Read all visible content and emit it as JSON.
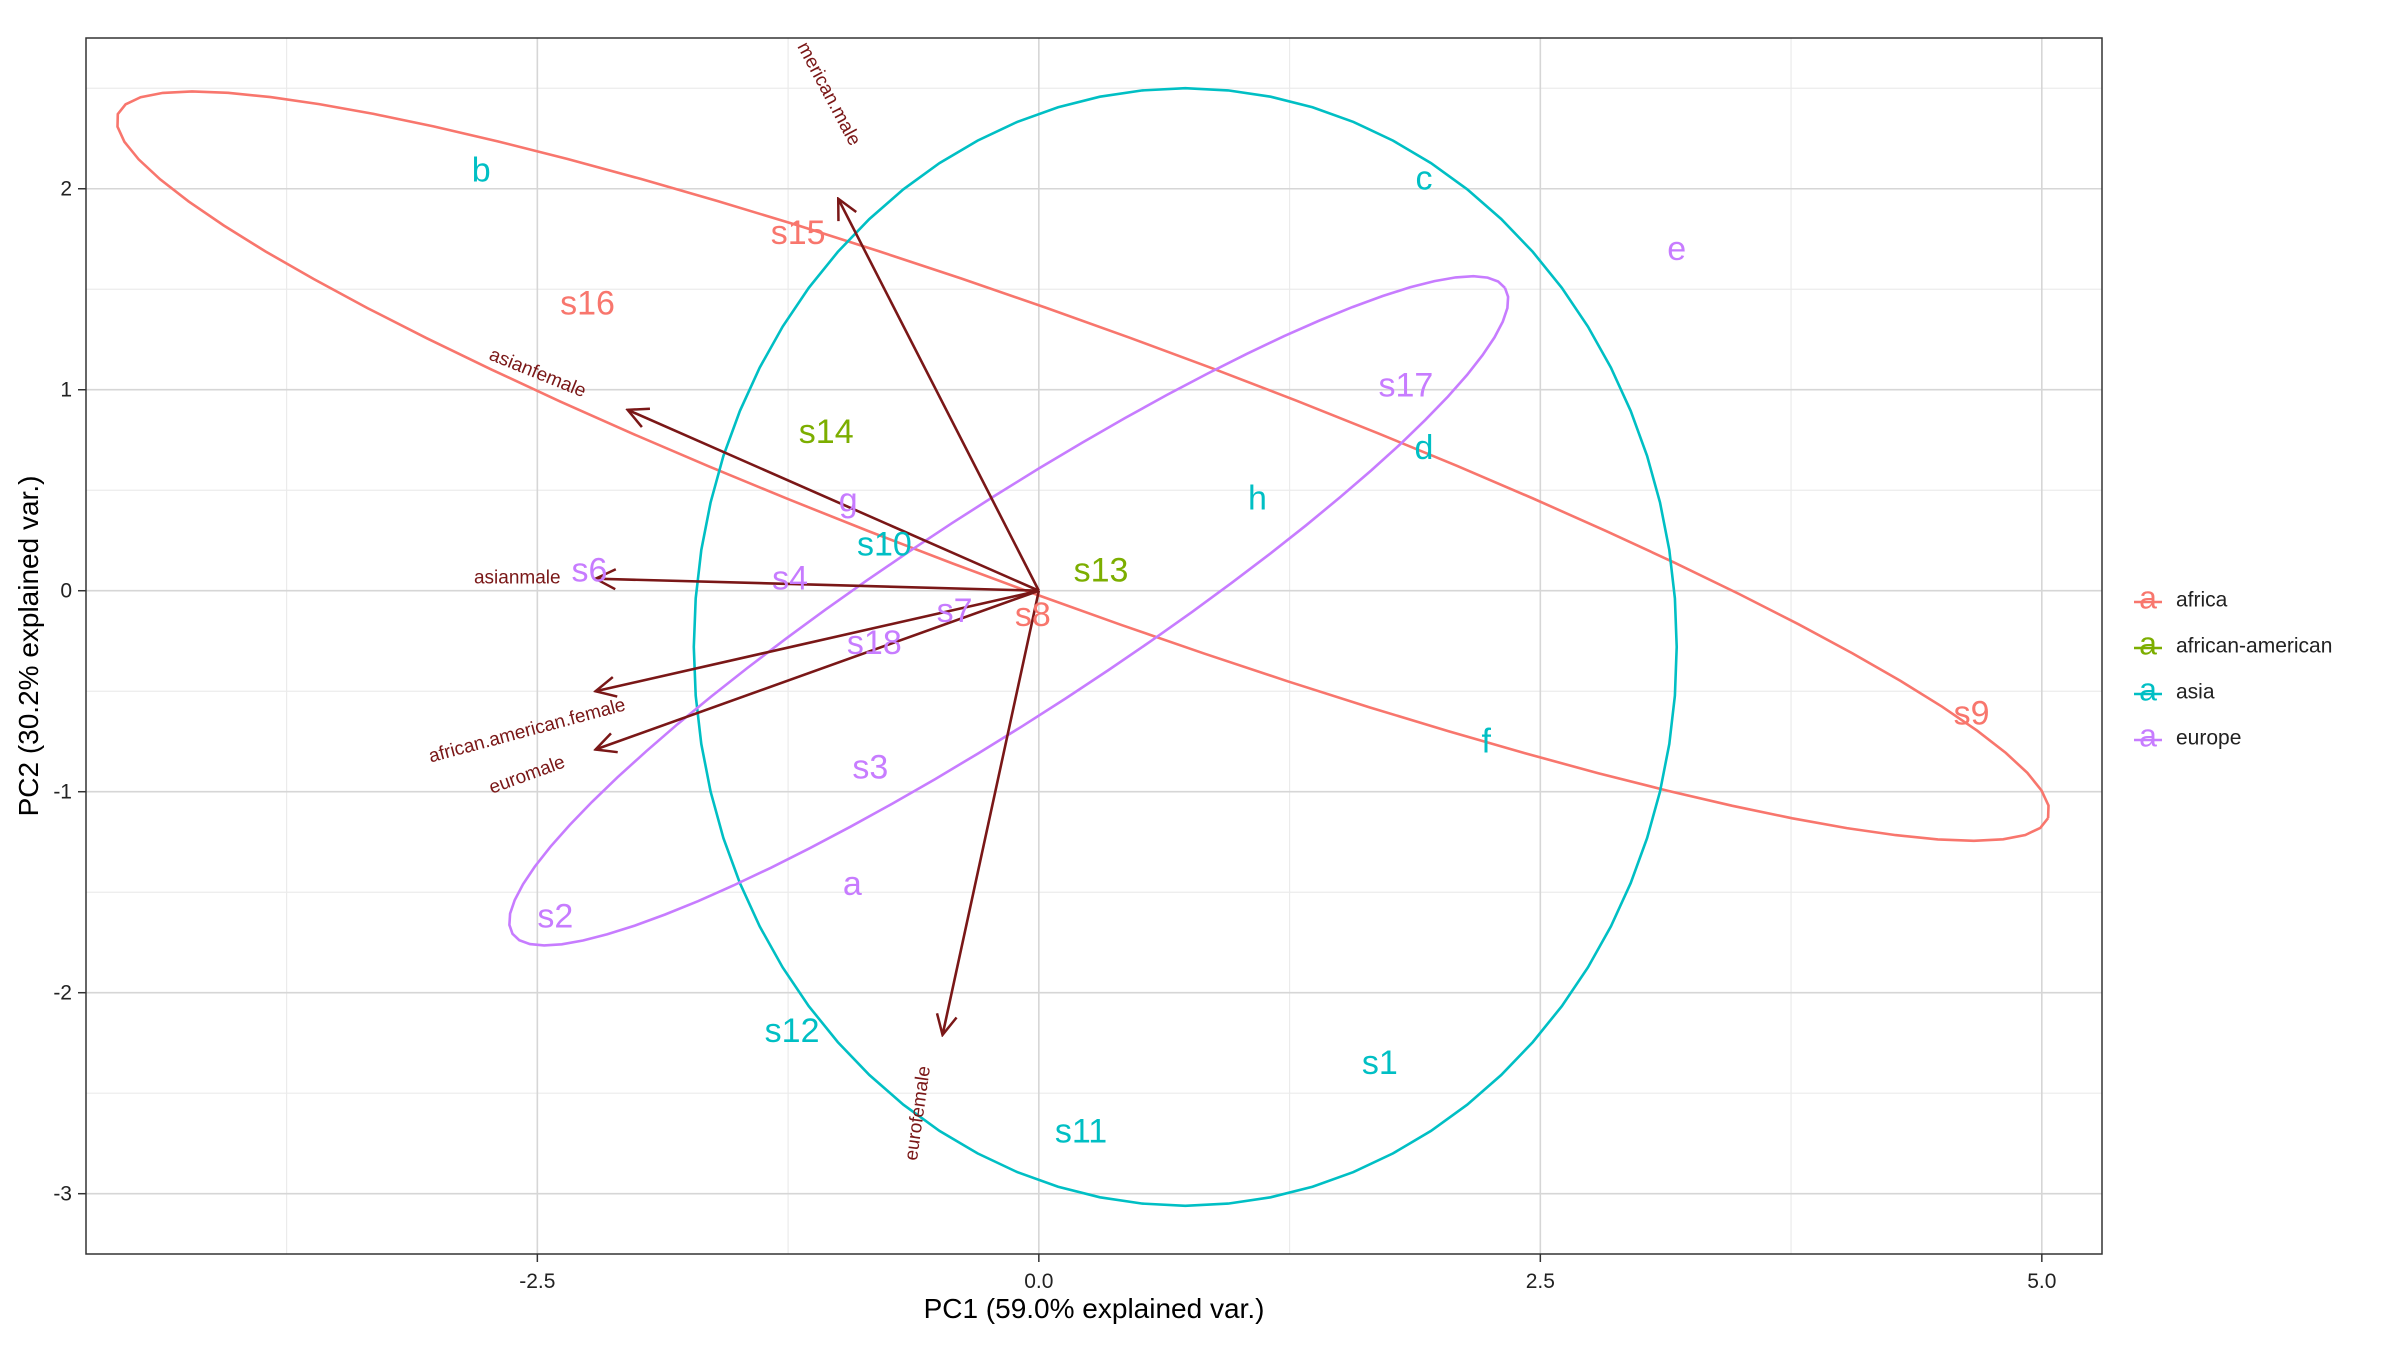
{
  "chart_data": {
    "type": "scatter",
    "subtype": "pca-biplot",
    "xlabel": "PC1 (59.0% explained var.)",
    "ylabel": "PC2 (30.2% explained var.)",
    "xlim": [
      -4.75,
      5.3
    ],
    "ylim": [
      -3.3,
      2.75
    ],
    "x_ticks": [
      -2.5,
      0.0,
      2.5,
      5.0
    ],
    "x_tick_labels": [
      "-2.5",
      "0.0",
      "2.5",
      "5.0"
    ],
    "y_ticks": [
      -3,
      -2,
      -1,
      0,
      1,
      2
    ],
    "y_tick_labels": [
      "-3",
      "-2",
      "-1",
      "0",
      "1",
      "2"
    ],
    "grid": true,
    "legend_placement": "right",
    "legend": {
      "items": [
        {
          "glyph": "a",
          "label": "africa",
          "color": "#F8766D"
        },
        {
          "glyph": "a",
          "label": "african-american",
          "color": "#7CAE00"
        },
        {
          "glyph": "a",
          "label": "asia",
          "color": "#00BFC4"
        },
        {
          "glyph": "a",
          "label": "europe",
          "color": "#C77CFF"
        }
      ]
    },
    "series": [
      {
        "name": "africa",
        "color": "#F8766D",
        "points": [
          {
            "label": "s15",
            "x": -1.2,
            "y": 1.77
          },
          {
            "label": "s16",
            "x": -2.25,
            "y": 1.42
          },
          {
            "label": "s8",
            "x": -0.03,
            "y": -0.13
          },
          {
            "label": "s9",
            "x": 4.65,
            "y": -0.62
          }
        ]
      },
      {
        "name": "african-american",
        "color": "#7CAE00",
        "points": [
          {
            "label": "s14",
            "x": -1.06,
            "y": 0.78
          },
          {
            "label": "s13",
            "x": 0.31,
            "y": 0.09
          }
        ]
      },
      {
        "name": "asia",
        "color": "#00BFC4",
        "points": [
          {
            "label": "b",
            "x": -2.78,
            "y": 2.08
          },
          {
            "label": "c",
            "x": 1.92,
            "y": 2.04
          },
          {
            "label": "d",
            "x": 1.92,
            "y": 0.7
          },
          {
            "label": "h",
            "x": 1.09,
            "y": 0.45
          },
          {
            "label": "s10",
            "x": -0.77,
            "y": 0.22
          },
          {
            "label": "f",
            "x": 2.23,
            "y": -0.76
          },
          {
            "label": "s12",
            "x": -1.23,
            "y": -2.2
          },
          {
            "label": "s1",
            "x": 1.7,
            "y": -2.36
          },
          {
            "label": "s11",
            "x": 0.21,
            "y": -2.7
          }
        ]
      },
      {
        "name": "europe",
        "color": "#C77CFF",
        "points": [
          {
            "label": "e",
            "x": 3.18,
            "y": 1.69
          },
          {
            "label": "s17",
            "x": 1.83,
            "y": 1.01
          },
          {
            "label": "g",
            "x": -0.95,
            "y": 0.44
          },
          {
            "label": "s6",
            "x": -2.24,
            "y": 0.09
          },
          {
            "label": "s4",
            "x": -1.24,
            "y": 0.05
          },
          {
            "label": "s7",
            "x": -0.42,
            "y": -0.11
          },
          {
            "label": "s18",
            "x": -0.82,
            "y": -0.27
          },
          {
            "label": "s3",
            "x": -0.84,
            "y": -0.89
          },
          {
            "label": "a",
            "x": -0.93,
            "y": -1.47
          },
          {
            "label": "s2",
            "x": -2.41,
            "y": -1.63
          }
        ]
      }
    ],
    "loadings": {
      "color": "#7A1717",
      "vectors": [
        {
          "label": "american.male",
          "displayed_text": "merican.male",
          "x": -1.0,
          "y": 1.95,
          "label_x": -1.05,
          "label_y": 2.47,
          "label_angle": 62
        },
        {
          "label": "asianfemale",
          "x": -2.05,
          "y": 0.9,
          "label_x": -2.5,
          "label_y": 1.08,
          "label_angle": 22
        },
        {
          "label": "asianmale",
          "x": -2.21,
          "y": 0.06,
          "label_x": -2.6,
          "label_y": 0.06,
          "label_angle": 0
        },
        {
          "label": "african.american.female",
          "x": -2.21,
          "y": -0.5,
          "label_x": -2.55,
          "label_y": -0.7,
          "label_angle": -15
        },
        {
          "label": "euromale",
          "x": -2.21,
          "y": -0.79,
          "label_x": -2.55,
          "label_y": -0.92,
          "label_angle": -20
        },
        {
          "label": "eurofemale",
          "x": -0.48,
          "y": -2.21,
          "label_x": -0.6,
          "label_y": -2.6,
          "label_angle": -82
        }
      ]
    },
    "ellipses": [
      {
        "group": "africa",
        "color": "#F8766D",
        "cx": 0.22,
        "cy": 0.62,
        "rx": 5.12,
        "ry": 0.68,
        "angle_deg": -20
      },
      {
        "group": "asia",
        "color": "#00BFC4",
        "cx": 0.73,
        "cy": -0.28,
        "rx": 2.45,
        "ry": 2.78,
        "angle_deg": 0
      },
      {
        "group": "europe",
        "color": "#C77CFF",
        "cx": -0.15,
        "cy": -0.1,
        "rx": 2.95,
        "ry": 0.52,
        "angle_deg": 33
      }
    ]
  }
}
